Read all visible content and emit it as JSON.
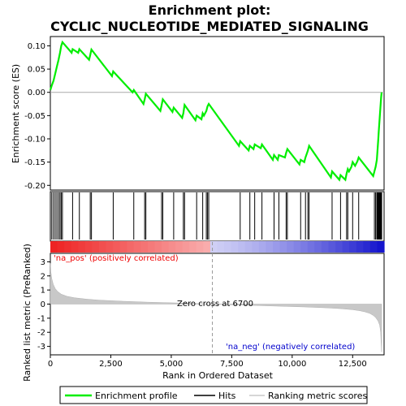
{
  "chart_data": {
    "type": "line",
    "title_line1": "Enrichment plot:",
    "title_line2": "CYCLIC_NUCLEOTIDE_MEDIATED_SIGNALING",
    "xlabel": "Rank in Ordered Dataset",
    "ylabel_top": "Enrichment score (ES)",
    "ylabel_bottom": "Ranked list metric (PreRanked)",
    "x_range": [
      0,
      13800
    ],
    "es_ylim": [
      -0.21,
      0.12
    ],
    "metric_ylim": [
      -3.6,
      3.6
    ],
    "x_ticks": [
      0,
      2500,
      5000,
      7500,
      10000,
      12500
    ],
    "x_tick_labels": [
      "0",
      "2,500",
      "5,000",
      "7,500",
      "10,000",
      "12,500"
    ],
    "es_ticks": [
      0.1,
      0.05,
      0.0,
      -0.05,
      -0.1,
      -0.15,
      -0.2
    ],
    "es_tick_labels": [
      "0.10",
      "0.05",
      "0.00",
      "-0.05",
      "-0.10",
      "-0.15",
      "-0.20"
    ],
    "metric_ticks": [
      3,
      2,
      1,
      0,
      -1,
      -2,
      -3
    ],
    "metric_tick_labels": [
      "3",
      "2",
      "1",
      "0",
      "-1",
      "-2",
      "-3"
    ],
    "zero_cross_rank": 6700,
    "zero_cross_label": "Zero cross at 6700",
    "pos_label": "'na_pos' (positively correlated)",
    "neg_label": "'na_neg' (negatively correlated)",
    "series": [
      {
        "name": "Enrichment profile",
        "x": [
          0,
          60,
          130,
          200,
          270,
          340,
          400,
          450,
          500,
          880,
          920,
          1150,
          1200,
          1600,
          1650,
          1700,
          2550,
          2600,
          3400,
          3450,
          3850,
          3900,
          3950,
          4550,
          4600,
          4650,
          5050,
          5100,
          5450,
          5500,
          5550,
          6000,
          6050,
          6250,
          6300,
          6350,
          6450,
          6500,
          6550,
          7800,
          7850,
          8200,
          8250,
          8400,
          8450,
          8700,
          8750,
          9200,
          9250,
          9400,
          9450,
          9700,
          9750,
          9800,
          10300,
          10350,
          10500,
          10550,
          10650,
          10700,
          11600,
          11650,
          11950,
          12000,
          12200,
          12250,
          12300,
          12350,
          12450,
          12500,
          12600,
          12700,
          12750,
          13350,
          13400,
          13450,
          13500,
          13520,
          13540,
          13560,
          13580,
          13600,
          13620,
          13640,
          13660,
          13680,
          13700
        ],
        "y": [
          0.005,
          0.015,
          0.025,
          0.04,
          0.055,
          0.07,
          0.085,
          0.1,
          0.108,
          0.085,
          0.093,
          0.085,
          0.093,
          0.07,
          0.08,
          0.092,
          0.035,
          0.045,
          0.0,
          0.005,
          -0.025,
          -0.015,
          -0.003,
          -0.04,
          -0.028,
          -0.015,
          -0.042,
          -0.033,
          -0.055,
          -0.045,
          -0.027,
          -0.06,
          -0.05,
          -0.058,
          -0.045,
          -0.05,
          -0.04,
          -0.03,
          -0.025,
          -0.115,
          -0.105,
          -0.125,
          -0.115,
          -0.122,
          -0.112,
          -0.12,
          -0.112,
          -0.145,
          -0.135,
          -0.145,
          -0.135,
          -0.14,
          -0.13,
          -0.122,
          -0.155,
          -0.145,
          -0.15,
          -0.14,
          -0.125,
          -0.115,
          -0.183,
          -0.17,
          -0.188,
          -0.178,
          -0.188,
          -0.175,
          -0.165,
          -0.17,
          -0.16,
          -0.15,
          -0.158,
          -0.148,
          -0.14,
          -0.18,
          -0.17,
          -0.16,
          -0.145,
          -0.13,
          -0.115,
          -0.1,
          -0.085,
          -0.07,
          -0.055,
          -0.04,
          -0.025,
          -0.01,
          0.0
        ]
      },
      {
        "name": "Hits",
        "x": [
          60,
          130,
          200,
          270,
          340,
          400,
          450,
          500,
          920,
          1200,
          1650,
          1700,
          2600,
          3450,
          3900,
          3950,
          4600,
          4650,
          5100,
          5500,
          5550,
          6050,
          6300,
          6450,
          6500,
          6550,
          7850,
          8250,
          8450,
          8750,
          9250,
          9450,
          9750,
          9800,
          10350,
          10550,
          10650,
          10700,
          11650,
          12000,
          12250,
          12300,
          12500,
          12750,
          13400,
          13450,
          13500,
          13520,
          13540,
          13560,
          13580,
          13600,
          13620,
          13640,
          13660,
          13680,
          13700
        ]
      },
      {
        "name": "Ranking metric scores",
        "x": [
          0,
          20,
          60,
          120,
          200,
          300,
          450,
          700,
          1000,
          1500,
          2000,
          3000,
          4000,
          5000,
          6000,
          6700,
          7500,
          8500,
          9500,
          10500,
          11500,
          12000,
          12500,
          12800,
          13000,
          13200,
          13350,
          13450,
          13550,
          13620,
          13660,
          13680,
          13700
        ],
        "y": [
          2.9,
          2.3,
          1.8,
          1.4,
          1.1,
          0.9,
          0.7,
          0.55,
          0.45,
          0.35,
          0.28,
          0.2,
          0.14,
          0.09,
          0.04,
          0.0,
          -0.05,
          -0.1,
          -0.15,
          -0.2,
          -0.27,
          -0.32,
          -0.4,
          -0.47,
          -0.55,
          -0.65,
          -0.8,
          -0.95,
          -1.2,
          -1.5,
          -2.0,
          -2.8,
          -3.4
        ]
      }
    ],
    "legend": {
      "position": "bottom",
      "entries": [
        "Enrichment profile",
        "Hits",
        "Ranking metric scores"
      ]
    },
    "colors": {
      "profile": "#00ee00",
      "hits": "#000000",
      "metric_fill": "#c8c8c8",
      "zero_line": "#aaaaaa",
      "pos_text": "#ee0000",
      "neg_text": "#0000cc",
      "bar_pos_strong": "#ee2020",
      "bar_neg_strong": "#1010cc"
    }
  }
}
